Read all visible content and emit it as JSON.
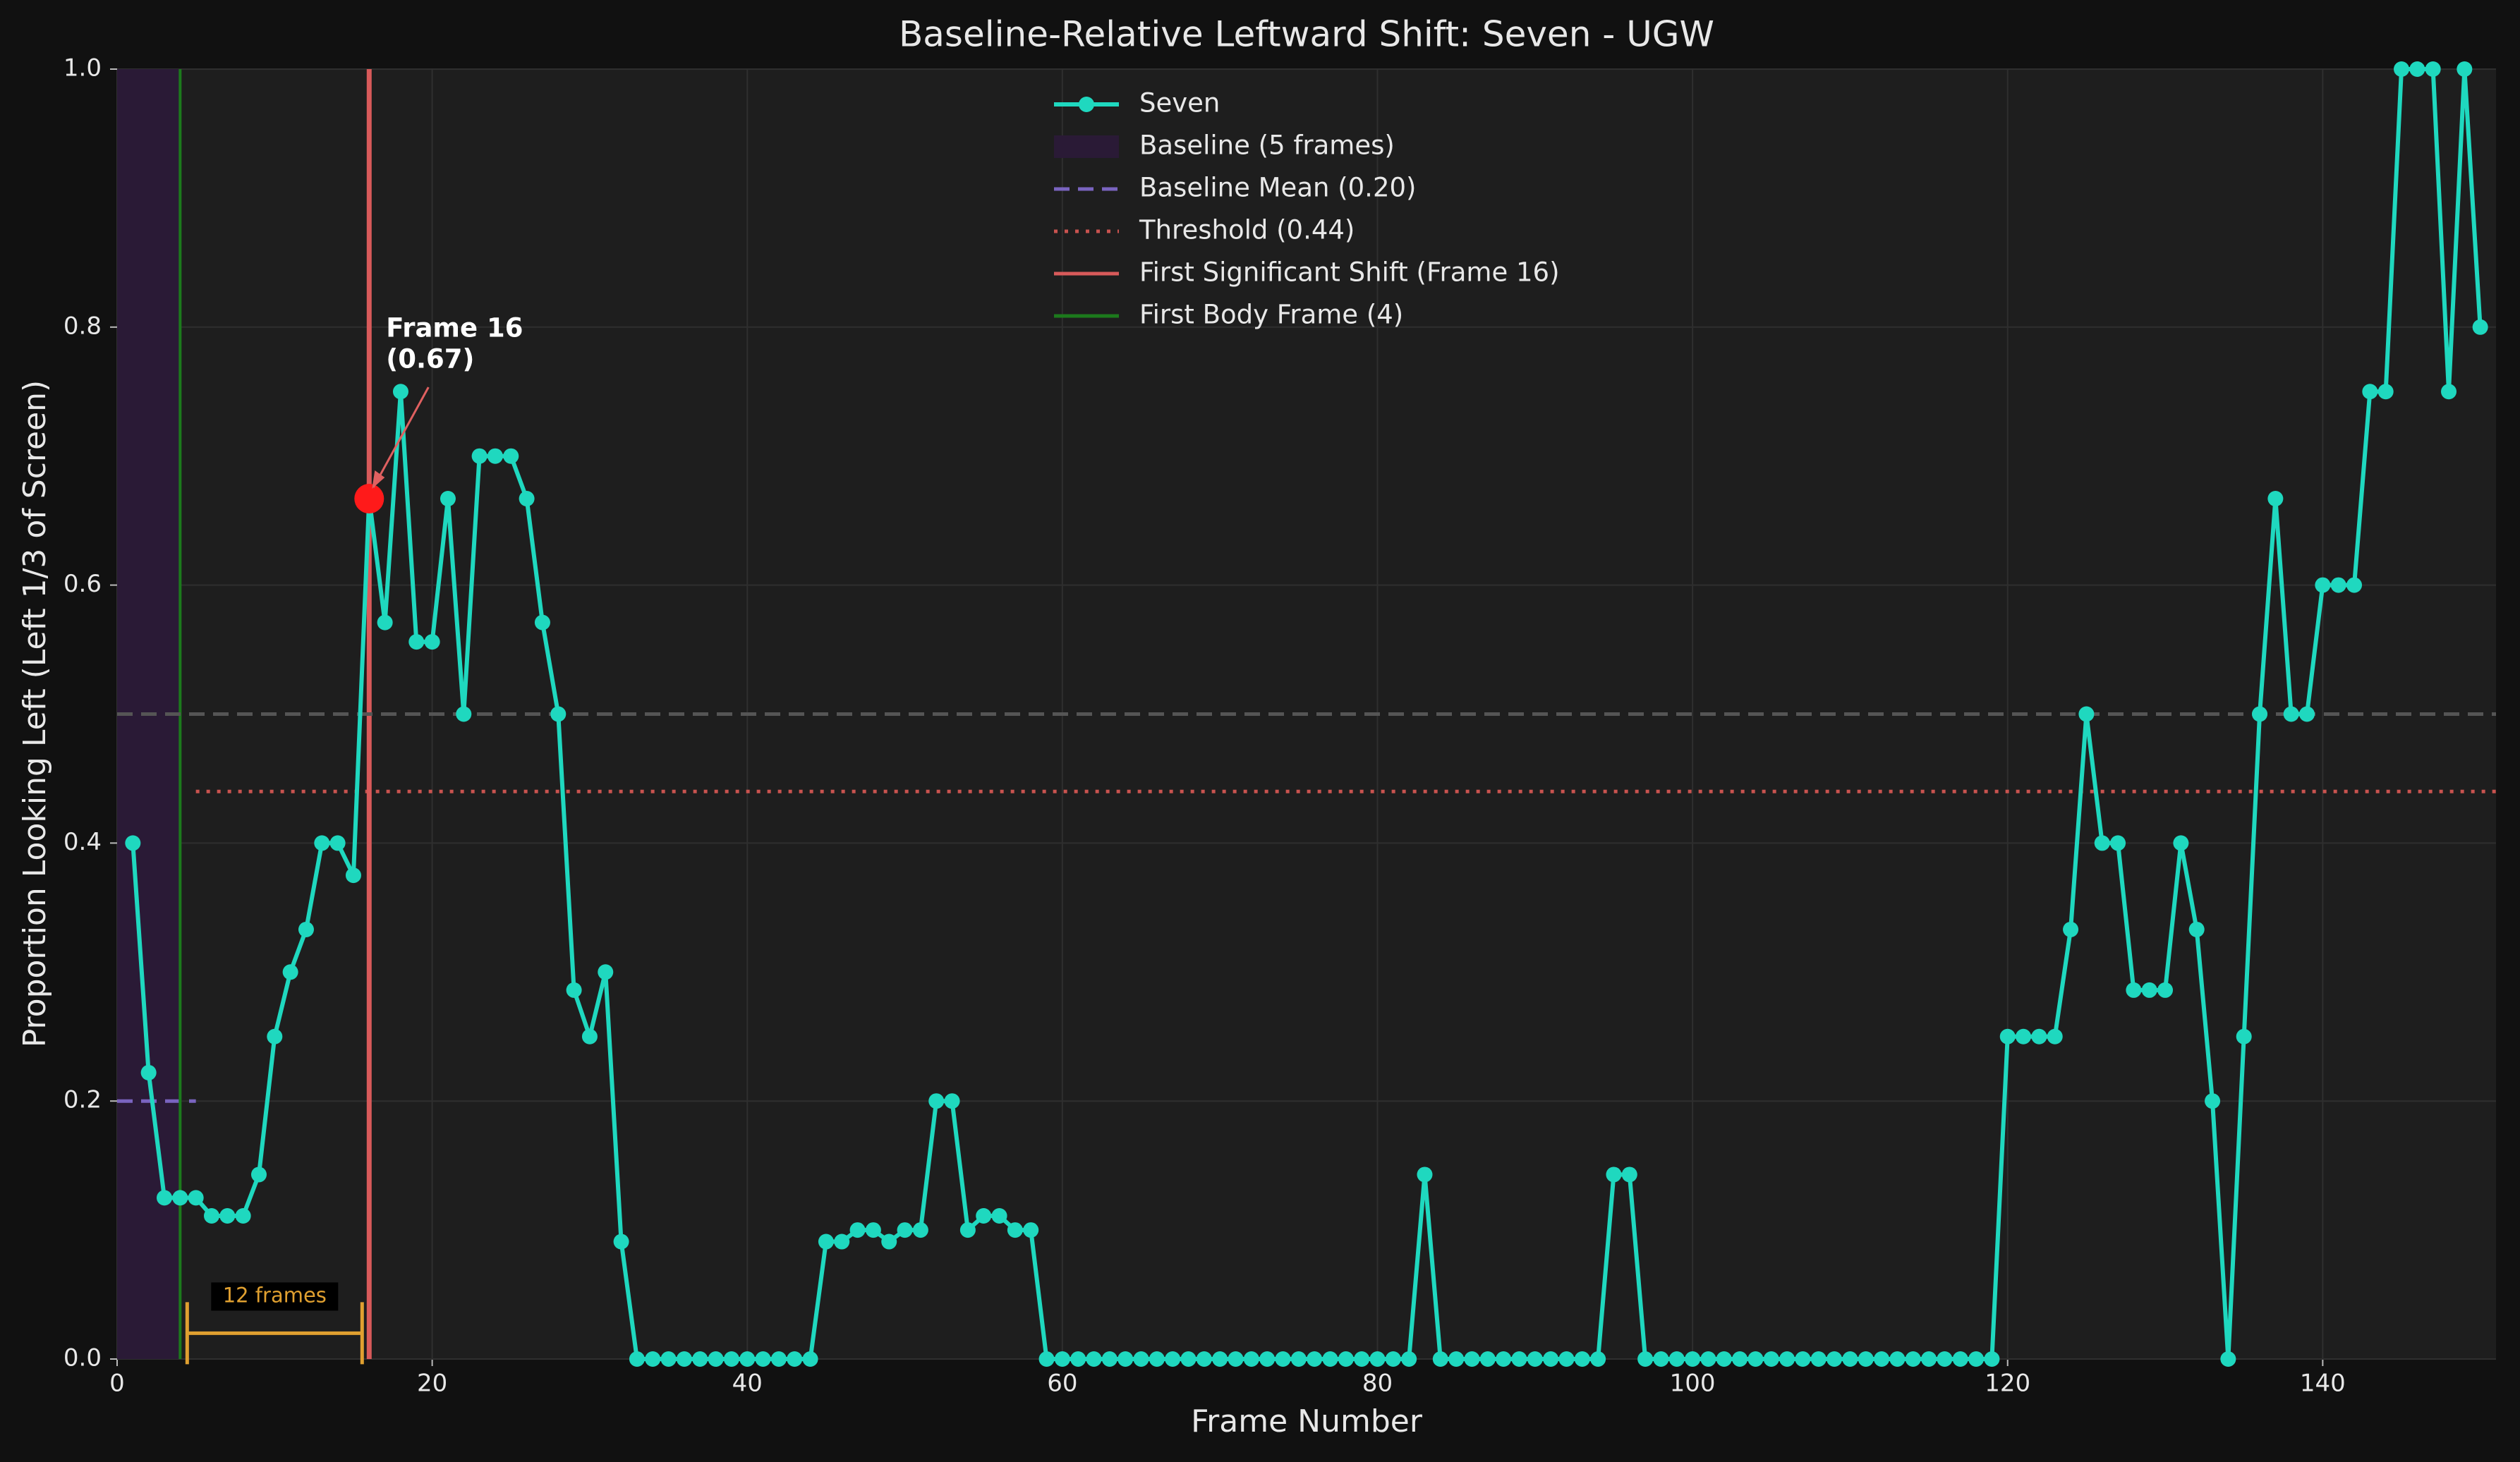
{
  "chart_data": {
    "type": "line",
    "title": "Baseline-Relative Leftward Shift: Seven - UGW",
    "xlabel": "Frame Number",
    "ylabel": "Proportion Looking Left (Left 1/3 of Screen)",
    "x": [
      1,
      2,
      3,
      4,
      5,
      6,
      7,
      8,
      9,
      10,
      11,
      12,
      13,
      14,
      15,
      16,
      17,
      18,
      19,
      20,
      21,
      22,
      23,
      24,
      25,
      26,
      27,
      28,
      29,
      30,
      31,
      32,
      33,
      34,
      35,
      36,
      37,
      38,
      39,
      40,
      41,
      42,
      43,
      44,
      45,
      46,
      47,
      48,
      49,
      50,
      51,
      52,
      53,
      54,
      55,
      56,
      57,
      58,
      59,
      60,
      61,
      62,
      63,
      64,
      65,
      66,
      67,
      68,
      69,
      70,
      71,
      72,
      73,
      74,
      75,
      76,
      77,
      78,
      79,
      80,
      81,
      82,
      83,
      84,
      85,
      86,
      87,
      88,
      89,
      90,
      91,
      92,
      93,
      94,
      95,
      96,
      97,
      98,
      99,
      100,
      101,
      102,
      103,
      104,
      105,
      106,
      107,
      108,
      109,
      110,
      111,
      112,
      113,
      114,
      115,
      116,
      117,
      118,
      119,
      120,
      121,
      122,
      123,
      124,
      125,
      126,
      127,
      128,
      129,
      130,
      131,
      132,
      133,
      134,
      135,
      136,
      137,
      138,
      139,
      140,
      141,
      142,
      143,
      144,
      145,
      146,
      147,
      148,
      149,
      150
    ],
    "series": [
      {
        "name": "Seven",
        "color": "#1fd8bf",
        "values": [
          0.4,
          0.222,
          0.125,
          0.125,
          0.125,
          0.111,
          0.111,
          0.111,
          0.143,
          0.25,
          0.3,
          0.333,
          0.4,
          0.4,
          0.375,
          0.667,
          0.571,
          0.75,
          0.556,
          0.556,
          0.667,
          0.5,
          0.7,
          0.7,
          0.7,
          0.667,
          0.571,
          0.5,
          0.286,
          0.25,
          0.3,
          0.091,
          0,
          0,
          0,
          0,
          0,
          0,
          0,
          0,
          0,
          0,
          0,
          0,
          0.091,
          0.091,
          0.1,
          0.1,
          0.091,
          0.1,
          0.1,
          0.2,
          0.2,
          0.1,
          0.111,
          0.111,
          0.1,
          0.1,
          0,
          0,
          0,
          0,
          0,
          0,
          0,
          0,
          0,
          0,
          0,
          0,
          0,
          0,
          0,
          0,
          0,
          0,
          0,
          0,
          0,
          0,
          0,
          0,
          0.143,
          0,
          0,
          0,
          0,
          0,
          0,
          0,
          0,
          0,
          0,
          0,
          0.143,
          0.143,
          0,
          0,
          0,
          0,
          0,
          0,
          0,
          0,
          0,
          0,
          0,
          0,
          0,
          0,
          0,
          0,
          0,
          0,
          0,
          0,
          0,
          0,
          0,
          0.25,
          0.25,
          0.25,
          0.25,
          0.333,
          0.5,
          0.4,
          0.4,
          0.286,
          0.286,
          0.286,
          0.4,
          0.333,
          0.2,
          0,
          0.25,
          0.5,
          0.667,
          0.5,
          0.5,
          0.6,
          0.6,
          0.6,
          0.75,
          0.75,
          1,
          1,
          1,
          0.75,
          1,
          0.8
        ]
      }
    ],
    "xlim": [
      0,
      151
    ],
    "ylim": [
      0,
      1
    ],
    "xticks": [
      0,
      20,
      40,
      60,
      80,
      100,
      120,
      140
    ],
    "yticks": [
      {
        "value": 0,
        "label": "0.0"
      },
      0.2,
      0.4,
      0.6,
      0.8,
      {
        "value": 1,
        "label": "1.0"
      }
    ],
    "grid": true,
    "legend": "upper center",
    "overlays": [
      {
        "kind": "span",
        "label": "Baseline (5 frames)",
        "x": [
          0,
          4
        ],
        "color": "#2a1a36"
      },
      {
        "kind": "hline",
        "label": "Baseline Mean (0.20)",
        "y": 0.2,
        "x": [
          0,
          5
        ],
        "color": "#7a64c0",
        "style": "dashed"
      },
      {
        "kind": "hline",
        "label": "Threshold (0.44)",
        "y": 0.44,
        "x": [
          5,
          151
        ],
        "color": "#c9534f",
        "style": "dotted"
      },
      {
        "kind": "vline",
        "label": "First Significant Shift (Frame 16)",
        "x": 16,
        "color": "#d85a5a",
        "style": "solid"
      },
      {
        "kind": "vline",
        "label": "First Body Frame (4)",
        "x": 4,
        "color": "#1c7a1c",
        "style": "solid"
      },
      {
        "kind": "hline",
        "y": 0.5,
        "x": [
          0,
          151
        ],
        "color": "#555555",
        "style": "dashed"
      }
    ],
    "highlight": {
      "x": 16,
      "y": 0.667,
      "color": "#ff1a1a",
      "label": [
        "Frame 16",
        "(0.67)"
      ]
    },
    "bracket": {
      "label": "12 frames",
      "x": [
        4,
        16
      ],
      "y": 0.02,
      "color": "#e0a030"
    }
  }
}
